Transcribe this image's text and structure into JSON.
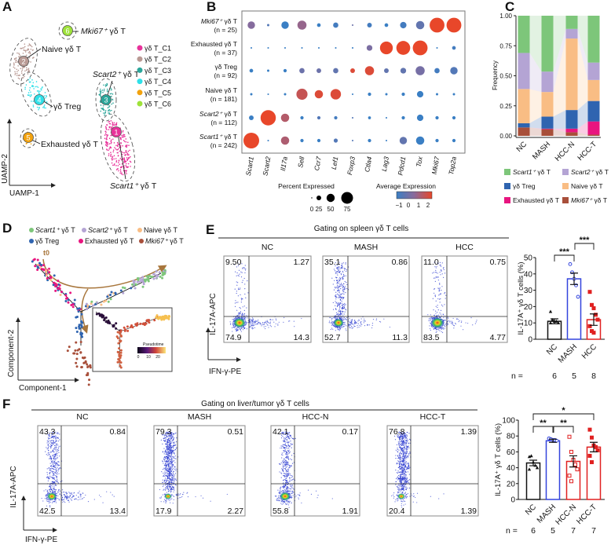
{
  "panel_labels": {
    "a": "A",
    "b": "B",
    "c": "C",
    "d": "D",
    "e": "E",
    "f": "F"
  },
  "chart_data": [
    {
      "type": "scatter",
      "panel": "A",
      "xlabel": "UAMP-1",
      "ylabel": "UAMP-2",
      "clusters": [
        {
          "id": "1",
          "legend": "γδ T_C1",
          "color": "#e8329a",
          "annotation": {
            "gene": "Scart1⁺",
            "rest": " γδ T"
          }
        },
        {
          "id": "2",
          "legend": "γδ T_C2",
          "color": "#b99a94",
          "annotation": {
            "gene": "",
            "rest": "Naive γδ T"
          }
        },
        {
          "id": "3",
          "legend": "γδ T_C3",
          "color": "#2ba69a",
          "annotation": {
            "gene": "Scart2⁺",
            "rest": " γδ T"
          }
        },
        {
          "id": "4",
          "legend": "γδ T_C4",
          "color": "#2fe0e8",
          "annotation": {
            "gene": "",
            "rest": "γδ Treg"
          }
        },
        {
          "id": "5",
          "legend": "γδ T_C5",
          "color": "#f2a20e",
          "annotation": {
            "gene": "",
            "rest": "Exhausted γδ T"
          }
        },
        {
          "id": "6",
          "legend": "γδ T_C6",
          "color": "#9ee23a",
          "annotation": {
            "gene": "Mki67⁺",
            "rest": " γδ T"
          }
        }
      ]
    },
    {
      "type": "heatmap",
      "panel": "B",
      "subtype": "dot plot",
      "genes": [
        "Scart1",
        "Scart2",
        "Il17a",
        "Sell",
        "Ccr7",
        "Lef1",
        "Foxp3",
        "Ctla4",
        "Lag3",
        "Pdcd1",
        "Tox",
        "Mki67",
        "Top2a"
      ],
      "rows": [
        {
          "gene": "Mki67⁺",
          "rest": " γδ T",
          "n": "(n = 25)",
          "pct": [
            20,
            2,
            20,
            30,
            5,
            10,
            1,
            8,
            5,
            15,
            25,
            80,
            80
          ],
          "avg": [
            0.5,
            -0.5,
            -1,
            0.8,
            -1,
            -0.8,
            0,
            -0.8,
            -1,
            -0.8,
            -0.2,
            2.2,
            2.2
          ]
        },
        {
          "gene": "",
          "rest": "Exhausted γδ T",
          "n": "(n = 37)",
          "pct": [
            1,
            1,
            1,
            1,
            1,
            1,
            1,
            12,
            60,
            70,
            80,
            1,
            5
          ],
          "avg": [
            -1,
            -1,
            -1,
            -1,
            -1,
            -1,
            -1,
            0.3,
            2.2,
            2.2,
            2.2,
            -1,
            -0.8
          ]
        },
        {
          "gene": "",
          "rest": "γδ Treg",
          "n": "(n = 92)",
          "pct": [
            5,
            2,
            4,
            10,
            8,
            10,
            8,
            30,
            8,
            12,
            30,
            10,
            20
          ],
          "avg": [
            -1,
            -1,
            -1,
            0,
            0,
            -0.2,
            2,
            2,
            -0.2,
            -0.2,
            0.2,
            -0.8,
            -0.5
          ]
        },
        {
          "gene": "",
          "rest": "Naive γδ T",
          "n": "(n = 181)",
          "pct": [
            2,
            1,
            2,
            45,
            25,
            40,
            1,
            4,
            2,
            4,
            15,
            2,
            2
          ],
          "avg": [
            -1,
            -1,
            -1,
            1.6,
            2,
            2,
            -1,
            -1,
            -1,
            -1,
            -1.2,
            -1,
            -1
          ]
        },
        {
          "gene": "Scart2⁺",
          "rest": " γδ T",
          "n": "(n = 112)",
          "pct": [
            8,
            85,
            25,
            4,
            4,
            4,
            1,
            3,
            1,
            4,
            15,
            4,
            4
          ],
          "avg": [
            -1,
            2.2,
            1.3,
            -1,
            -0.5,
            -0.8,
            -0.5,
            -1,
            -1,
            -1,
            -1.2,
            -1,
            -1
          ]
        },
        {
          "gene": "Scart1⁺",
          "rest": " γδ T",
          "n": "(n = 242)",
          "pct": [
            90,
            1,
            25,
            4,
            4,
            6,
            1,
            4,
            1,
            20,
            25,
            4,
            4
          ],
          "avg": [
            2.2,
            -1,
            1.2,
            -1,
            -1,
            -0.5,
            -0.5,
            -1,
            -1,
            -0.2,
            -1,
            -1,
            -1
          ]
        }
      ],
      "size_legend_title": "Percent Expressed",
      "size_ticks": [
        "0",
        "25",
        "50",
        "75"
      ],
      "color_legend_title": "Average Expression",
      "color_ticks": [
        "−1",
        "0",
        "1",
        "2"
      ],
      "color_low": "#3a7fc4",
      "color_mid": "#8a6a9a",
      "color_high": "#e8472a"
    },
    {
      "type": "bar",
      "panel": "C",
      "stacked": true,
      "ylabel": "Frequency",
      "ylim": [
        0,
        1
      ],
      "yticks": [
        "0.00",
        "0.25",
        "0.50",
        "0.75",
        "1.00"
      ],
      "categories": [
        "NC",
        "MASH",
        "HCC-N",
        "HCC-T"
      ],
      "series": [
        {
          "gene": "Mki67⁺",
          "rest": " γδ T",
          "color": "#a84f3a",
          "values": [
            0.07,
            0.055,
            0.03,
            0.01
          ]
        },
        {
          "gene": "",
          "rest": "Exhausted γδ T",
          "color": "#e8157f",
          "values": [
            0.0,
            0.005,
            0.03,
            0.11
          ]
        },
        {
          "gene": "",
          "rest": "γδ Treg",
          "color": "#2f64b0",
          "values": [
            0.035,
            0.1,
            0.155,
            0.17
          ]
        },
        {
          "gene": "",
          "rest": "Naive γδ T",
          "color": "#f9bd84",
          "values": [
            0.285,
            0.205,
            0.595,
            0.175
          ]
        },
        {
          "gene": "Scart2⁺",
          "rest": " γδ T",
          "color": "#b4a4d4",
          "values": [
            0.3,
            0.17,
            0.08,
            0.145
          ]
        },
        {
          "gene": "Scart1⁺",
          "rest": " γδ T",
          "color": "#7dc67a",
          "values": [
            0.31,
            0.465,
            0.11,
            0.39
          ]
        }
      ]
    },
    {
      "type": "scatter",
      "panel": "D",
      "subtype": "trajectory",
      "xlabel": "Component-1",
      "ylabel": "Component-2",
      "start_label": "t0",
      "legend": [
        {
          "gene": "Scart1⁺",
          "rest": " γδ T",
          "color": "#7dc67a"
        },
        {
          "gene": "Scart2⁺",
          "rest": " γδ T",
          "color": "#b4a4d4"
        },
        {
          "gene": "",
          "rest": "Naive γδ T",
          "color": "#f9bd84"
        },
        {
          "gene": "",
          "rest": "γδ Treg",
          "color": "#2f64b0"
        },
        {
          "gene": "",
          "rest": "Exhausted γδ T",
          "color": "#e8157f"
        },
        {
          "gene": "Mki67⁺",
          "rest": " γδ T",
          "color": "#a84f3a"
        }
      ],
      "inset": {
        "title": "Pseudotime",
        "ticks": [
          "0",
          "10",
          "20"
        ]
      }
    },
    {
      "type": "scatter",
      "panel": "E",
      "subtype": "flow cytometry",
      "title": "Gating on spleen γδ T cells",
      "xlabel": "IFN-γ-PE",
      "ylabel": "IL-17A-APC",
      "plots": [
        {
          "name": "NC",
          "ul": "9.50",
          "ur": "1.27",
          "ll": "74.9",
          "lr": "14.3"
        },
        {
          "name": "MASH",
          "ul": "35.1",
          "ur": "0.86",
          "ll": "52.7",
          "lr": "11.3"
        },
        {
          "name": "HCC",
          "ul": "11.0",
          "ur": "0.75",
          "ll": "83.5",
          "lr": "4.77"
        }
      ]
    },
    {
      "type": "bar",
      "panel": "E",
      "ylabel": "IL-17A⁺ γδ T cells (%)",
      "ylim": [
        0,
        50
      ],
      "yticks": [
        "0",
        "10",
        "20",
        "30",
        "40",
        "50"
      ],
      "categories": [
        "NC",
        "MASH",
        "HCC"
      ],
      "colors": [
        "#111111",
        "#3344dd",
        "#e02020"
      ],
      "markers": [
        "triangle",
        "circle-open",
        "square"
      ],
      "means": [
        11,
        37,
        12
      ],
      "sems": [
        1.5,
        3.5,
        3.5
      ],
      "points": [
        [
          17,
          12,
          11,
          11,
          10,
          10
        ],
        [
          46,
          41,
          37,
          33,
          26
        ],
        [
          29,
          21,
          19,
          15,
          12,
          8,
          5,
          4
        ]
      ],
      "n_label": "n =",
      "n": [
        "6",
        "5",
        "8"
      ],
      "significance": [
        {
          "from": 0,
          "to": 1,
          "label": "***"
        },
        {
          "from": 1,
          "to": 2,
          "label": "***"
        }
      ]
    },
    {
      "type": "scatter",
      "panel": "F",
      "subtype": "flow cytometry",
      "title": "Gating on liver/tumor γδ T cells",
      "xlabel": "IFN-γ-PE",
      "ylabel": "IL-17A-APC",
      "plots": [
        {
          "name": "NC",
          "ul": "43.3",
          "ur": "0.84",
          "ll": "42.5",
          "lr": "13.4"
        },
        {
          "name": "MASH",
          "ul": "79.3",
          "ur": "0.51",
          "ll": "17.9",
          "lr": "2.27"
        },
        {
          "name": "HCC-N",
          "ul": "42.1",
          "ur": "0.17",
          "ll": "55.8",
          "lr": "1.91"
        },
        {
          "name": "HCC-T",
          "ul": "76.8",
          "ur": "1.39",
          "ll": "20.4",
          "lr": "1.39"
        }
      ]
    },
    {
      "type": "bar",
      "panel": "F",
      "ylabel": "IL-17A⁺ γδ T cells (%)",
      "ylim": [
        0,
        100
      ],
      "yticks": [
        "0",
        "20",
        "40",
        "60",
        "80",
        "100"
      ],
      "categories": [
        "NC",
        "MASH",
        "HCC-N",
        "HCC-T"
      ],
      "colors": [
        "#111111",
        "#3344dd",
        "#e02020",
        "#e02020"
      ],
      "markers": [
        "triangle",
        "circle-open",
        "square-open",
        "square"
      ],
      "means": [
        46,
        74,
        48,
        66
      ],
      "sems": [
        3.5,
        2,
        7,
        6
      ],
      "points": [
        [
          54,
          55,
          47,
          43,
          40,
          38
        ],
        [
          77,
          76,
          75,
          75,
          74
        ],
        [
          79,
          60,
          50,
          44,
          38,
          30,
          23
        ],
        [
          88,
          78,
          68,
          66,
          62,
          55,
          47
        ]
      ],
      "n_label": "n =",
      "n": [
        "6",
        "5",
        "7",
        "7"
      ],
      "significance": [
        {
          "from": 0,
          "to": 1,
          "label": "**"
        },
        {
          "from": 1,
          "to": 2,
          "label": "**"
        },
        {
          "from": 0,
          "to": 3,
          "label": "*"
        }
      ]
    }
  ]
}
